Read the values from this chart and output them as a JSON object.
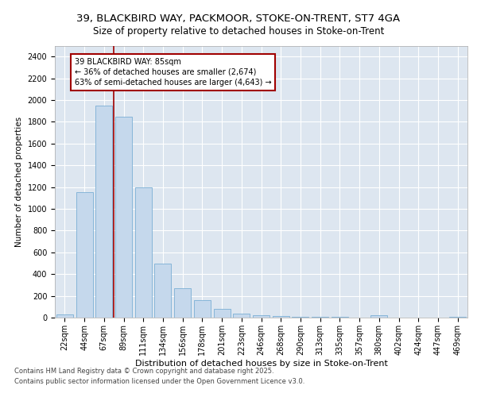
{
  "title1": "39, BLACKBIRD WAY, PACKMOOR, STOKE-ON-TRENT, ST7 4GA",
  "title2": "Size of property relative to detached houses in Stoke-on-Trent",
  "xlabel": "Distribution of detached houses by size in Stoke-on-Trent",
  "ylabel": "Number of detached properties",
  "categories": [
    "22sqm",
    "44sqm",
    "67sqm",
    "89sqm",
    "111sqm",
    "134sqm",
    "156sqm",
    "178sqm",
    "201sqm",
    "223sqm",
    "246sqm",
    "268sqm",
    "290sqm",
    "313sqm",
    "335sqm",
    "357sqm",
    "380sqm",
    "402sqm",
    "424sqm",
    "447sqm",
    "469sqm"
  ],
  "values": [
    30,
    1150,
    1950,
    1850,
    1200,
    500,
    270,
    160,
    80,
    35,
    20,
    15,
    10,
    7,
    5,
    3,
    20,
    2,
    1,
    1,
    5
  ],
  "bar_color": "#c5d8ec",
  "bar_edge_color": "#7bafd4",
  "bg_color": "#dde6f0",
  "vline_x_index": 2,
  "vline_color": "#a00000",
  "annotation_line1": "39 BLACKBIRD WAY: 85sqm",
  "annotation_line2": "← 36% of detached houses are smaller (2,674)",
  "annotation_line3": "63% of semi-detached houses are larger (4,643) →",
  "annotation_box_color": "#ffffff",
  "annotation_border_color": "#a00000",
  "ylim": [
    0,
    2500
  ],
  "yticks": [
    0,
    200,
    400,
    600,
    800,
    1000,
    1200,
    1400,
    1600,
    1800,
    2000,
    2200,
    2400
  ],
  "footnote1": "Contains HM Land Registry data © Crown copyright and database right 2025.",
  "footnote2": "Contains public sector information licensed under the Open Government Licence v3.0.",
  "title1_fontsize": 9.5,
  "title2_fontsize": 8.5,
  "ylabel_fontsize": 7.5,
  "xlabel_fontsize": 8,
  "tick_fontsize": 7,
  "annotation_fontsize": 7,
  "footnote_fontsize": 6
}
